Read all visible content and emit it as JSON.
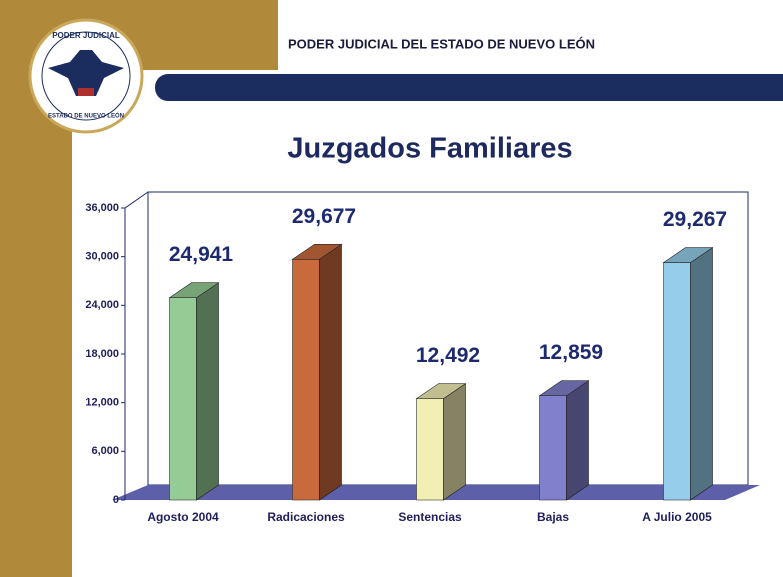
{
  "header": {
    "title": "PODER JUDICIAL DEL ESTADO DE NUEVO LEÓN"
  },
  "logo": {
    "top_text": "PODER JUDICIAL",
    "bottom_text": "ESTADO DE NUEVO LEÓN"
  },
  "chart_data": {
    "type": "bar3d",
    "title": "Juzgados Familiares",
    "categories": [
      "Agosto 2004",
      "Radicaciones",
      "Sentencias",
      "Bajas",
      "A Julio 2005"
    ],
    "values": [
      24941,
      29677,
      12492,
      12859,
      29267
    ],
    "value_labels": [
      "24,941",
      "29,677",
      "12,492",
      "12,859",
      "29,267"
    ],
    "colors": [
      "#95cc95",
      "#c96a3c",
      "#f1efb4",
      "#8080cc",
      "#95cdea"
    ],
    "ylim": [
      0,
      36000
    ],
    "yticks": [
      0,
      {
        "value": 6000,
        "label": "6,000"
      },
      {
        "value": 12000,
        "label": "12,000"
      },
      {
        "value": 18000,
        "label": "18,000"
      },
      {
        "value": 24000,
        "label": "24,000"
      },
      {
        "value": 30000,
        "label": "30,000"
      },
      {
        "value": 36000,
        "label": "36,000"
      }
    ]
  }
}
